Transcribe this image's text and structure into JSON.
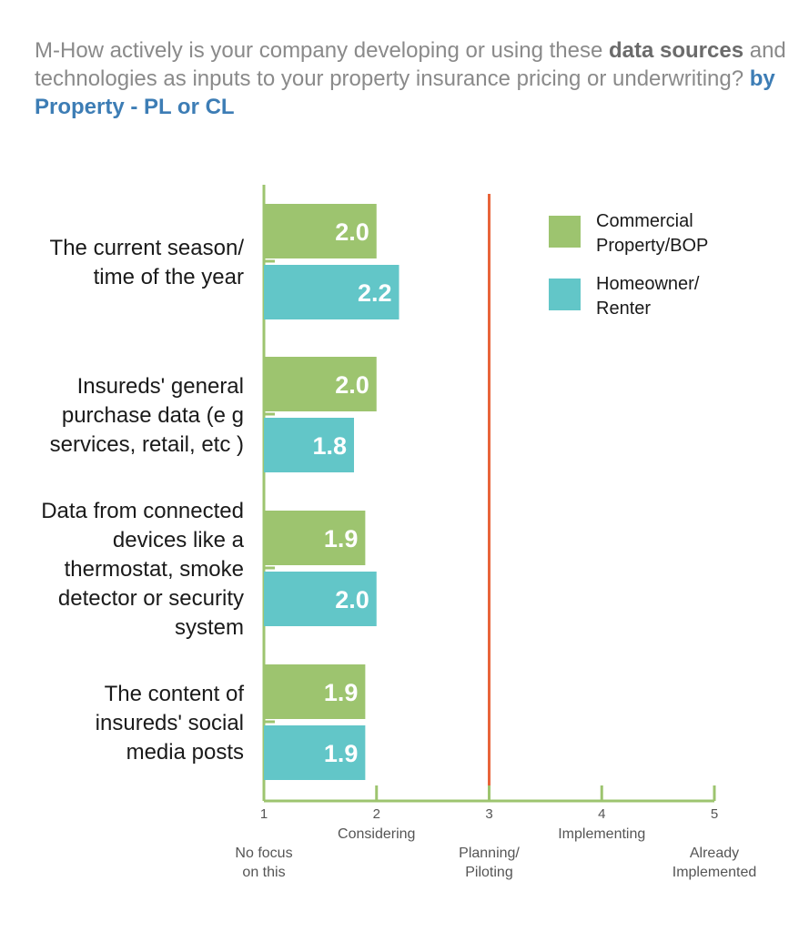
{
  "title": {
    "part1": "M-How actively is your company developing or using these ",
    "strong": "data sources",
    "part2": " and technologies as inputs to your property insurance pricing or underwriting? ",
    "accent": "by Property - PL or CL"
  },
  "colors": {
    "commercial": "#9dc46f",
    "homeowner": "#62c6c8",
    "axis": "#9dc46f",
    "reference_line": "#e8643a"
  },
  "chart_data": {
    "type": "bar",
    "orientation": "horizontal",
    "categories": [
      [
        "The current season/",
        "time of the year"
      ],
      [
        "Insureds' general",
        "purchase data (e g",
        "services, retail, etc )"
      ],
      [
        "Data from connected",
        "devices like a",
        "thermostat, smoke",
        "detector or security",
        "system"
      ],
      [
        "The content of",
        "insureds' social",
        "media posts"
      ]
    ],
    "series": [
      {
        "name": "Commercial Property/BOP",
        "values": [
          2.0,
          2.0,
          1.9,
          1.9
        ]
      },
      {
        "name": "Homeowner/ Renter",
        "values": [
          2.2,
          1.8,
          2.0,
          1.9
        ]
      }
    ],
    "value_labels": [
      [
        "2.0",
        "2.0",
        "1.9",
        "1.9"
      ],
      [
        "2.2",
        "1.8",
        "2.0",
        "1.9"
      ]
    ],
    "xlim": [
      1,
      5
    ],
    "xticks": [
      1,
      2,
      3,
      4,
      5
    ],
    "tick_labels": [
      [
        "No focus",
        "on this"
      ],
      [
        "Considering"
      ],
      [
        "Planning/",
        "Piloting"
      ],
      [
        "Implementing"
      ],
      [
        "Already",
        "Implemented"
      ]
    ],
    "reference_line": 3,
    "legend": {
      "placement": "top-right",
      "entries": [
        [
          "Commercial",
          "Property/BOP"
        ],
        [
          "Homeowner/",
          "Renter"
        ]
      ]
    }
  }
}
